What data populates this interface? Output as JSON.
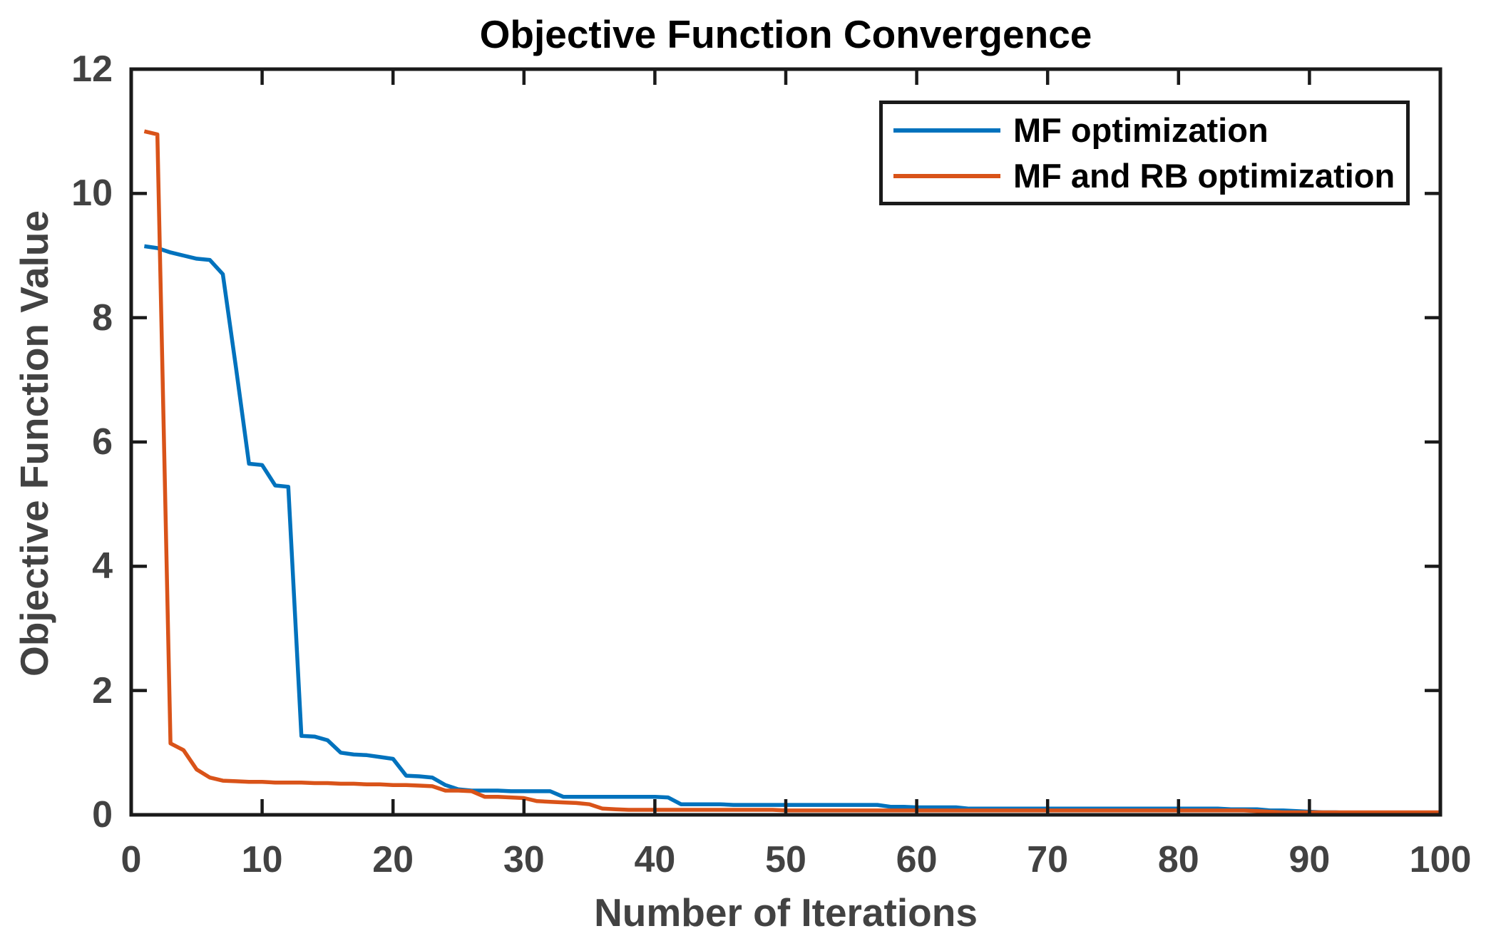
{
  "figure": {
    "title": "Objective Function Convergence",
    "xlabel": "Number of Iterations",
    "ylabel": "Objective Function Value"
  },
  "legend": {
    "items": [
      {
        "label": "MF optimization",
        "color": "#0072BD"
      },
      {
        "label": "MF and RB optimization",
        "color": "#D95319"
      }
    ]
  },
  "chart_data": {
    "type": "line",
    "title": "Objective Function Convergence",
    "xlabel": "Number of Iterations",
    "ylabel": "Objective Function Value",
    "xlim": [
      0,
      100
    ],
    "ylim": [
      0,
      12
    ],
    "xticks": [
      0,
      10,
      20,
      30,
      40,
      50,
      60,
      70,
      80,
      90,
      100
    ],
    "yticks": [
      0,
      2,
      4,
      6,
      8,
      10,
      12
    ],
    "grid": false,
    "legend_position": "top-right-inside",
    "axis_color": "#1a1a1a",
    "tick_label_color": "#424242",
    "x": [
      1,
      2,
      3,
      4,
      5,
      6,
      7,
      8,
      9,
      10,
      11,
      12,
      13,
      14,
      15,
      16,
      17,
      18,
      19,
      20,
      21,
      22,
      23,
      24,
      25,
      26,
      27,
      28,
      29,
      30,
      31,
      32,
      33,
      34,
      35,
      36,
      37,
      38,
      39,
      40,
      41,
      42,
      43,
      44,
      45,
      46,
      47,
      48,
      49,
      50,
      51,
      52,
      53,
      54,
      55,
      56,
      57,
      58,
      59,
      60,
      61,
      62,
      63,
      64,
      65,
      66,
      67,
      68,
      69,
      70,
      71,
      72,
      73,
      74,
      75,
      76,
      77,
      78,
      79,
      80,
      81,
      82,
      83,
      84,
      85,
      86,
      87,
      88,
      89,
      90,
      91,
      92,
      93,
      94,
      95,
      96,
      97,
      98,
      99,
      100
    ],
    "series": [
      {
        "name": "MF optimization",
        "color": "#0072BD",
        "values": [
          9.15,
          9.12,
          9.05,
          9.0,
          8.95,
          8.93,
          8.7,
          7.2,
          5.65,
          5.63,
          5.3,
          5.28,
          1.27,
          1.26,
          1.2,
          1.0,
          0.97,
          0.96,
          0.93,
          0.9,
          0.63,
          0.62,
          0.6,
          0.48,
          0.41,
          0.39,
          0.39,
          0.39,
          0.38,
          0.38,
          0.38,
          0.38,
          0.29,
          0.29,
          0.29,
          0.29,
          0.29,
          0.29,
          0.29,
          0.29,
          0.28,
          0.17,
          0.17,
          0.17,
          0.17,
          0.16,
          0.16,
          0.16,
          0.16,
          0.16,
          0.16,
          0.16,
          0.16,
          0.16,
          0.16,
          0.16,
          0.16,
          0.13,
          0.13,
          0.12,
          0.12,
          0.12,
          0.12,
          0.1,
          0.1,
          0.1,
          0.1,
          0.1,
          0.1,
          0.1,
          0.1,
          0.1,
          0.1,
          0.1,
          0.1,
          0.1,
          0.1,
          0.1,
          0.1,
          0.1,
          0.1,
          0.1,
          0.1,
          0.09,
          0.09,
          0.09,
          0.07,
          0.07,
          0.06,
          0.05,
          0.04,
          0.04,
          0.03,
          0.03,
          0.02,
          0.01,
          0.01,
          0.01,
          0.01,
          0.01
        ]
      },
      {
        "name": "MF and RB optimization",
        "color": "#D95319",
        "values": [
          11.0,
          10.95,
          1.15,
          1.04,
          0.73,
          0.6,
          0.55,
          0.54,
          0.53,
          0.53,
          0.52,
          0.52,
          0.52,
          0.51,
          0.51,
          0.5,
          0.5,
          0.49,
          0.49,
          0.48,
          0.48,
          0.47,
          0.46,
          0.39,
          0.39,
          0.38,
          0.29,
          0.29,
          0.28,
          0.27,
          0.22,
          0.21,
          0.2,
          0.19,
          0.17,
          0.1,
          0.09,
          0.08,
          0.08,
          0.08,
          0.08,
          0.08,
          0.08,
          0.08,
          0.08,
          0.08,
          0.08,
          0.08,
          0.08,
          0.07,
          0.07,
          0.07,
          0.07,
          0.07,
          0.07,
          0.07,
          0.07,
          0.07,
          0.07,
          0.07,
          0.07,
          0.07,
          0.07,
          0.07,
          0.07,
          0.07,
          0.07,
          0.07,
          0.07,
          0.07,
          0.07,
          0.07,
          0.07,
          0.07,
          0.07,
          0.07,
          0.07,
          0.07,
          0.07,
          0.07,
          0.07,
          0.07,
          0.07,
          0.07,
          0.07,
          0.06,
          0.05,
          0.04,
          0.04,
          0.04,
          0.04,
          0.04,
          0.04,
          0.04,
          0.04,
          0.04,
          0.04,
          0.04,
          0.04,
          0.04
        ]
      }
    ]
  }
}
